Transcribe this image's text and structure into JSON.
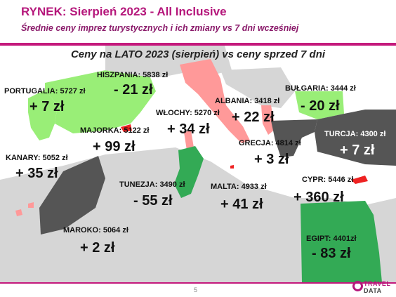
{
  "header": {
    "title": "RYNEK: Sierpień 2023 - All Inclusive",
    "subtitle": "Średnie ceny imprez turystycznych i ich zmiany vs 7 dni wcześniej"
  },
  "map": {
    "title": "Ceny na LATO 2023 (sierpień) vs ceny sprzed 7 dni"
  },
  "colors": {
    "increase": "#ff9999",
    "decrease": "#99ee77",
    "dark_increase": "#555555",
    "green_strong": "#33aa55",
    "accent": "#c4197c"
  },
  "destinations": [
    {
      "id": "hiszpania",
      "label": "HISZPANIA: 5838 zł",
      "change": "- 21 zł"
    },
    {
      "id": "portugalia",
      "label": "PORTUGALIA: 5727 zł",
      "change": "+ 7 zł"
    },
    {
      "id": "wlochy",
      "label": "WŁOCHY: 5270 zł",
      "change": "+ 34 zł"
    },
    {
      "id": "albania",
      "label": "ALBANIA: 3418 zł",
      "change": "+ 22 zł"
    },
    {
      "id": "bulgaria",
      "label": "BUŁGARIA: 3444 zł",
      "change": "- 20 zł"
    },
    {
      "id": "majorka",
      "label": "MAJORKA: 5122 zł",
      "change": "+ 99 zł"
    },
    {
      "id": "turcja",
      "label": "TURCJA: 4300 zł",
      "change": "+ 7 zł"
    },
    {
      "id": "grecja",
      "label": "GRECJA: 4814 zł",
      "change": "+ 3 zł"
    },
    {
      "id": "kanary",
      "label": "KANARY: 5052 zł",
      "change": "+ 35 zł"
    },
    {
      "id": "tunezja",
      "label": "TUNEZJA: 3490 zł",
      "change": "- 55 zł"
    },
    {
      "id": "malta",
      "label": "MALTA: 4933 zł",
      "change": "+ 41 zł"
    },
    {
      "id": "cypr",
      "label": "CYPR: 5446 zł",
      "change": "+ 360 zł"
    },
    {
      "id": "maroko",
      "label": "MAROKO: 5064 zł",
      "change": "+ 2 zł"
    },
    {
      "id": "egipt",
      "label": "EGIPT: 4401zł",
      "change": "- 83 zł"
    }
  ],
  "footer": {
    "page": "5",
    "logo_line1": "TRAVEL",
    "logo_line2": "DATA"
  }
}
